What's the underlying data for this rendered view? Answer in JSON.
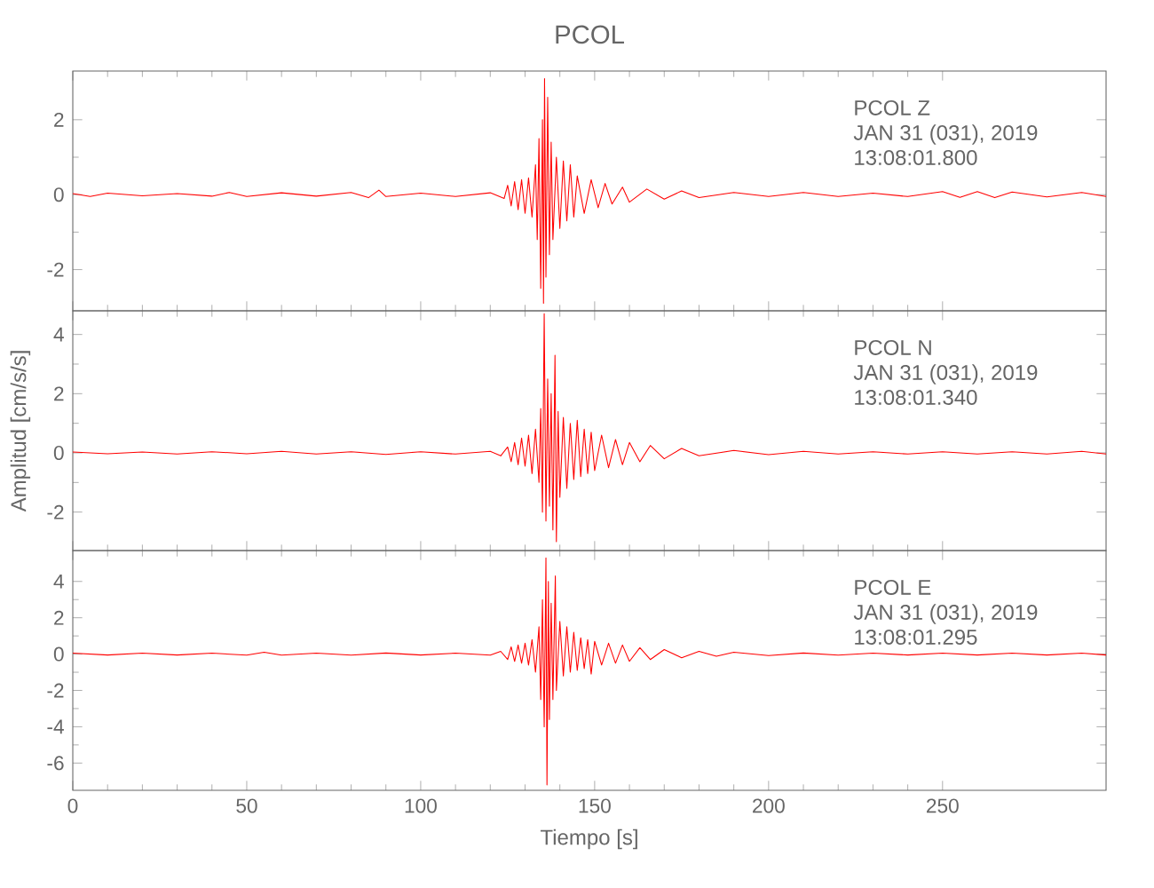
{
  "chart_data": [
    {
      "type": "line",
      "title": "PCOL",
      "annotations": [
        "PCOL   Z",
        "JAN 31 (031), 2019",
        "13:08:01.800"
      ],
      "xlim": [
        0,
        297
      ],
      "xticks": [
        0,
        50,
        100,
        150,
        200,
        250
      ],
      "ylim": [
        -3.1,
        3.3
      ],
      "yticks": [
        -2,
        0,
        2
      ],
      "tick_labels": "y",
      "x": [
        0,
        5,
        10,
        20,
        30,
        40,
        45,
        50,
        60,
        70,
        80,
        85,
        88,
        90,
        100,
        110,
        120,
        124,
        125,
        126,
        127,
        128,
        129,
        130,
        131,
        132,
        133,
        133.5,
        134,
        134.5,
        135,
        135.3,
        135.6,
        136,
        136.5,
        137,
        137.5,
        138,
        139,
        140,
        141,
        142,
        143,
        144,
        145,
        147,
        149,
        151,
        153,
        155,
        158,
        160,
        165,
        170,
        175,
        180,
        190,
        200,
        210,
        220,
        230,
        240,
        250,
        255,
        260,
        265,
        270,
        280,
        290,
        297
      ],
      "series": [
        {
          "color": "#ff0000",
          "values": [
            0.03,
            -0.05,
            0.04,
            -0.03,
            0.03,
            -0.04,
            0.06,
            -0.05,
            0.05,
            -0.04,
            0.06,
            -0.08,
            0.12,
            -0.05,
            0.04,
            -0.05,
            0.05,
            -0.1,
            0.25,
            -0.3,
            0.35,
            -0.4,
            0.4,
            -0.5,
            0.45,
            -0.6,
            0.8,
            -1.2,
            1.5,
            -2.5,
            2.0,
            -2.9,
            3.1,
            -2.2,
            2.6,
            -1.6,
            1.4,
            -1.2,
            1.0,
            -0.9,
            0.9,
            -0.7,
            0.8,
            -0.6,
            0.5,
            -0.5,
            0.4,
            -0.35,
            0.3,
            -0.25,
            0.2,
            -0.2,
            0.15,
            -0.12,
            0.1,
            -0.08,
            0.06,
            -0.05,
            0.06,
            -0.05,
            0.04,
            -0.05,
            0.08,
            -0.07,
            0.08,
            -0.08,
            0.07,
            -0.06,
            0.06,
            -0.05
          ]
        }
      ]
    },
    {
      "type": "line",
      "ylabel": "Amplitud [cm/s/s]",
      "annotations": [
        "PCOL   N",
        "JAN 31 (031), 2019",
        "13:08:01.340"
      ],
      "xlim": [
        0,
        297
      ],
      "xticks": [
        0,
        50,
        100,
        150,
        200,
        250
      ],
      "ylim": [
        -3.3,
        4.8
      ],
      "yticks": [
        -2,
        0,
        2,
        4
      ],
      "tick_labels": "y",
      "x": [
        0,
        10,
        20,
        30,
        40,
        50,
        60,
        70,
        80,
        90,
        100,
        110,
        120,
        123,
        125,
        126,
        127,
        128,
        129,
        130,
        131,
        132,
        133,
        134,
        134.5,
        135,
        135.5,
        136,
        136.5,
        137,
        137.5,
        138,
        138.6,
        139,
        139.5,
        140,
        141,
        142,
        143,
        144,
        145,
        146,
        147,
        148,
        149,
        150,
        152,
        154,
        156,
        158,
        160,
        163,
        166,
        170,
        175,
        180,
        190,
        200,
        210,
        220,
        230,
        240,
        250,
        260,
        270,
        280,
        290,
        297
      ],
      "series": [
        {
          "color": "#ff0000",
          "values": [
            0.03,
            -0.03,
            0.03,
            -0.04,
            0.04,
            -0.03,
            0.05,
            -0.04,
            0.04,
            -0.05,
            0.04,
            -0.04,
            0.05,
            -0.1,
            0.2,
            -0.3,
            0.35,
            -0.4,
            0.5,
            -0.45,
            0.6,
            -0.7,
            0.8,
            -1.0,
            1.5,
            -2.0,
            4.7,
            -2.3,
            2.5,
            -1.8,
            2.0,
            -2.6,
            3.3,
            -3.0,
            1.4,
            -1.5,
            1.2,
            -1.2,
            1.0,
            -0.9,
            1.1,
            -0.8,
            0.8,
            -0.7,
            0.7,
            -0.6,
            0.6,
            -0.5,
            0.45,
            -0.4,
            0.35,
            -0.3,
            0.25,
            -0.2,
            0.15,
            -0.1,
            0.08,
            -0.06,
            0.05,
            -0.04,
            0.04,
            -0.04,
            0.04,
            -0.04,
            0.04,
            -0.04,
            0.05,
            -0.04
          ]
        }
      ]
    },
    {
      "type": "line",
      "xlabel": "Tiempo [s]",
      "annotations": [
        "PCOL   E",
        "JAN 31 (031), 2019",
        "13:08:01.295"
      ],
      "xlim": [
        0,
        297
      ],
      "xticks": [
        0,
        50,
        100,
        150,
        200,
        250
      ],
      "ylim": [
        -7.5,
        5.7
      ],
      "yticks": [
        -6,
        -4,
        -2,
        0,
        2,
        4
      ],
      "x": [
        0,
        10,
        20,
        30,
        40,
        50,
        55,
        60,
        70,
        80,
        90,
        100,
        110,
        120,
        123,
        125,
        126,
        127,
        128,
        129,
        130,
        131,
        132,
        133,
        134,
        134.5,
        135,
        135.5,
        136,
        136.3,
        136.7,
        137,
        137.5,
        138,
        138.7,
        139,
        140,
        141,
        142,
        143,
        144,
        145,
        146,
        147,
        148,
        149,
        150,
        152,
        154,
        156,
        158,
        160,
        163,
        166,
        170,
        175,
        180,
        185,
        190,
        200,
        210,
        220,
        230,
        240,
        250,
        260,
        270,
        280,
        290,
        297
      ],
      "series": [
        {
          "color": "#ff0000",
          "values": [
            0.05,
            -0.05,
            0.05,
            -0.05,
            0.05,
            -0.06,
            0.1,
            -0.06,
            0.05,
            -0.06,
            0.06,
            -0.05,
            0.05,
            -0.06,
            0.15,
            -0.3,
            0.4,
            -0.4,
            0.5,
            -0.5,
            0.6,
            -0.6,
            0.8,
            -1.0,
            1.5,
            -2.5,
            3.0,
            -4.0,
            5.3,
            -7.2,
            4.0,
            -3.6,
            2.8,
            -2.5,
            4.3,
            -2.0,
            1.8,
            -1.2,
            1.5,
            -1.0,
            1.2,
            -0.9,
            0.9,
            -0.8,
            0.8,
            -1.1,
            0.7,
            -0.6,
            0.6,
            -0.5,
            0.5,
            -0.4,
            0.35,
            -0.3,
            0.25,
            -0.2,
            0.15,
            -0.12,
            0.1,
            -0.08,
            0.06,
            -0.06,
            0.05,
            -0.05,
            0.05,
            -0.05,
            0.05,
            -0.05,
            0.05,
            -0.05
          ]
        }
      ]
    }
  ]
}
